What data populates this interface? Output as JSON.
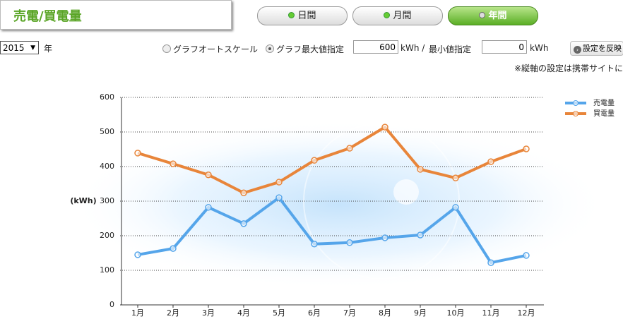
{
  "header": {
    "title": "売電/買電量"
  },
  "tabs": [
    "日間",
    "月間",
    "年間"
  ],
  "controls": {
    "year": "2015",
    "year_unit": "年",
    "auto_scale": "グラフオートスケール",
    "max_scale": "グラフ最大値指定",
    "max_value": "600",
    "max_unit": "kWh /",
    "min_label": "最小値指定",
    "min_value": "0",
    "min_unit": "kWh",
    "apply": "設定を反映",
    "note": "※縦軸の設定は携帯サイトに"
  },
  "chart_data": {
    "type": "line",
    "y_label": "(kWh)",
    "categories": [
      "1月",
      "2月",
      "3月",
      "4月",
      "5月",
      "6月",
      "7月",
      "8月",
      "9月",
      "10月",
      "11月",
      "12月"
    ],
    "series": [
      {
        "name": "売電量",
        "color": "#55a5ea",
        "values": [
          145,
          163,
          282,
          235,
          310,
          176,
          180,
          194,
          202,
          282,
          122,
          143
        ]
      },
      {
        "name": "買電量",
        "color": "#e8853a",
        "values": [
          439,
          408,
          376,
          324,
          355,
          418,
          453,
          514,
          392,
          367,
          414,
          451
        ]
      }
    ],
    "ylim": [
      0,
      600
    ],
    "yticks": [
      0,
      100,
      200,
      300,
      400,
      500,
      600
    ],
    "grid": true,
    "legend": "right"
  }
}
